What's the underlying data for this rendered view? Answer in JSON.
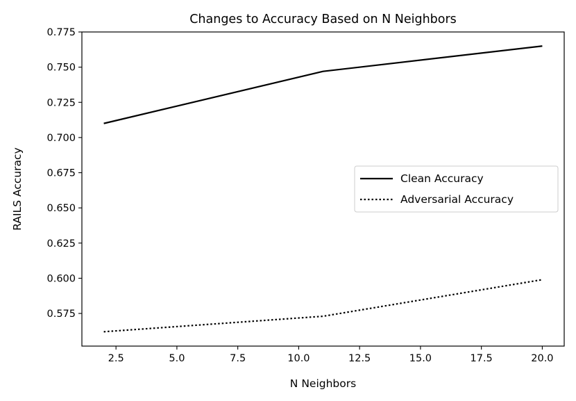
{
  "chart_data": {
    "type": "line",
    "title": "Changes to Accuracy Based on N Neighbors",
    "xlabel": "N Neighbors",
    "ylabel": "RAILS Accuracy",
    "xlim": [
      1.1,
      20.9
    ],
    "ylim": [
      0.5518,
      0.775
    ],
    "xticks": [
      2.5,
      5.0,
      7.5,
      10.0,
      12.5,
      15.0,
      17.5,
      20.0
    ],
    "xtick_labels": [
      "2.5",
      "5.0",
      "7.5",
      "10.0",
      "12.5",
      "15.0",
      "17.5",
      "20.0"
    ],
    "yticks": [
      0.575,
      0.6,
      0.625,
      0.65,
      0.675,
      0.7,
      0.725,
      0.75,
      0.775
    ],
    "ytick_labels": [
      "0.575",
      "0.600",
      "0.625",
      "0.650",
      "0.675",
      "0.700",
      "0.725",
      "0.750",
      "0.775"
    ],
    "grid": false,
    "legend_position": "center-right",
    "series": [
      {
        "name": "Clean Accuracy",
        "x": [
          2,
          11,
          20
        ],
        "y": [
          0.71,
          0.747,
          0.765
        ],
        "color": "#000000",
        "dash": "solid"
      },
      {
        "name": "Adversarial Accuracy",
        "x": [
          2,
          11,
          20
        ],
        "y": [
          0.562,
          0.573,
          0.599
        ],
        "color": "#000000",
        "dash": "dotted"
      }
    ]
  }
}
